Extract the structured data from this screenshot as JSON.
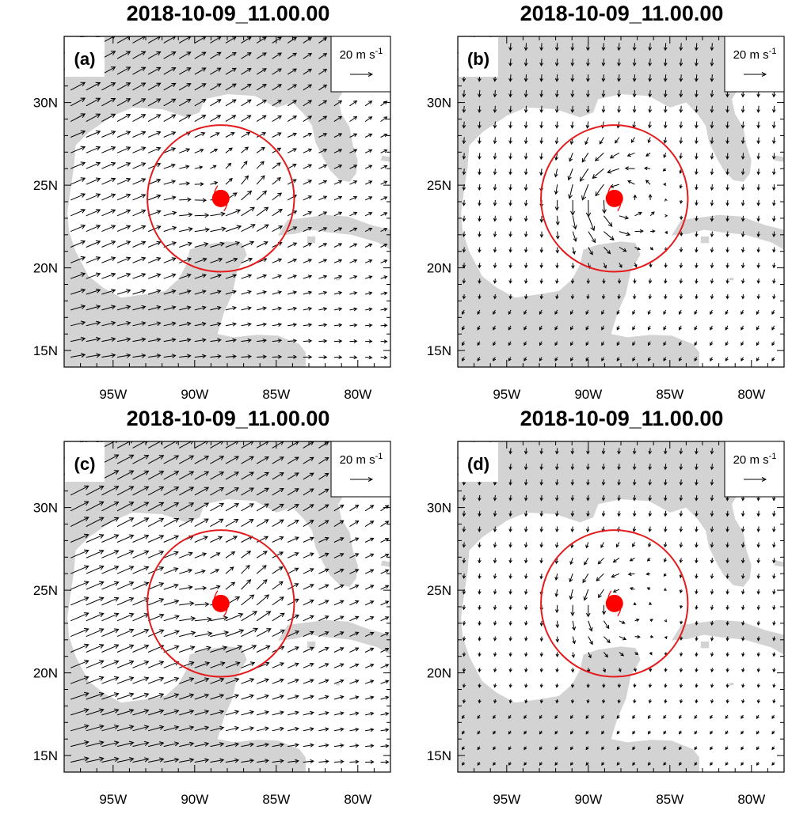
{
  "figure": {
    "panels": [
      {
        "letter": "(a)",
        "title": "2018-10-09_11.00.00",
        "flow": "westerly"
      },
      {
        "letter": "(b)",
        "title": "2018-10-09_11.00.00",
        "flow": "northerly"
      },
      {
        "letter": "(c)",
        "title": "2018-10-09_11.00.00",
        "flow": "westerly-strong"
      },
      {
        "letter": "(d)",
        "title": "2018-10-09_11.00.00",
        "flow": "northerly-weak"
      }
    ],
    "ref_vector_label": "20 m s",
    "ref_vector_exp": "-1",
    "lat_labels": [
      "30N",
      "25N",
      "20N",
      "15N"
    ],
    "lon_labels": [
      "95W",
      "90W",
      "85W",
      "80W"
    ],
    "colors": {
      "land": "#d3d3d3",
      "ocean": "#ffffff",
      "storm_marker": "#ff0000",
      "circle": "#e41a1c",
      "vectors": "#000000"
    }
  },
  "map_extent": {
    "lon_min": -98.0,
    "lon_max": -78.0,
    "lat_min": 14.0,
    "lat_max": 34.0
  },
  "storm": {
    "name": "",
    "lon": -88.4,
    "lat": 24.2,
    "radius_deg": 4.5
  }
}
